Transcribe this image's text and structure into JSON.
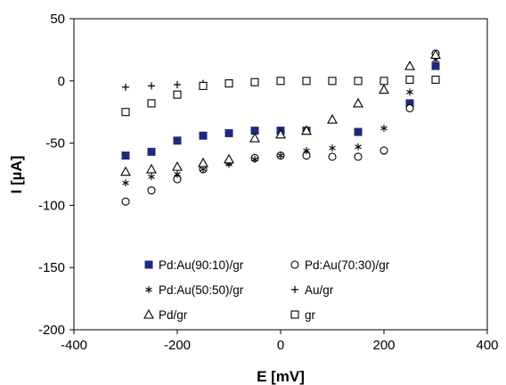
{
  "chart_data": {
    "type": "scatter",
    "xlabel": "E [mV]",
    "ylabel": "I [µA]",
    "xlim": [
      -400,
      400
    ],
    "ylim": [
      -200,
      50
    ],
    "xticks": [
      -400,
      -200,
      0,
      200,
      400
    ],
    "yticks": [
      -200,
      -150,
      -100,
      -50,
      0,
      50
    ],
    "grid": false,
    "legend_position": "lower-left",
    "series": [
      {
        "name": "Pd:Au(90:10)/gr",
        "marker": "filled-square",
        "color": "#1f2a7a",
        "x": [
          -300,
          -250,
          -200,
          -150,
          -100,
          -50,
          0,
          50,
          150,
          250,
          300
        ],
        "y": [
          -60,
          -57,
          -48,
          -44,
          -42,
          -40,
          -40,
          -40,
          -41,
          -18,
          12
        ]
      },
      {
        "name": "Pd:Au(70:30)/gr",
        "marker": "open-circle",
        "color": "#000000",
        "x": [
          -300,
          -250,
          -200,
          -150,
          -100,
          -50,
          0,
          50,
          100,
          150,
          200,
          250,
          300
        ],
        "y": [
          -97,
          -88,
          -79,
          -71,
          -65,
          -62,
          -60,
          -60,
          -61,
          -61,
          -56,
          -22,
          22
        ]
      },
      {
        "name": "Pd:Au(50:50)/gr",
        "marker": "asterisk",
        "color": "#000000",
        "x": [
          -300,
          -250,
          -200,
          -150,
          -100,
          -50,
          0,
          50,
          100,
          150,
          200,
          250,
          300
        ],
        "y": [
          -82,
          -77,
          -75,
          -71,
          -67,
          -63,
          -60,
          -56,
          -54,
          -53,
          -38,
          -9,
          17
        ]
      },
      {
        "name": "Au/gr",
        "marker": "plus",
        "color": "#000000",
        "x": [
          -300,
          -250,
          -200,
          -150
        ],
        "y": [
          -5,
          -4,
          -3,
          -2
        ]
      },
      {
        "name": "Pd/gr",
        "marker": "open-triangle",
        "color": "#000000",
        "x": [
          -300,
          -250,
          -200,
          -150,
          -100,
          -50,
          0,
          50,
          100,
          150,
          200,
          250,
          300
        ],
        "y": [
          -73,
          -71,
          -69,
          -66,
          -63,
          -46,
          -43,
          -40,
          -31,
          -18,
          -7,
          12,
          21
        ]
      },
      {
        "name": "gr",
        "marker": "open-square",
        "color": "#000000",
        "x": [
          -300,
          -250,
          -200,
          -150,
          -100,
          -50,
          0,
          50,
          100,
          150,
          200,
          250,
          300
        ],
        "y": [
          -25,
          -18,
          -11,
          -4,
          -2,
          -1,
          0,
          0,
          0,
          0,
          0,
          1,
          1
        ]
      }
    ]
  }
}
